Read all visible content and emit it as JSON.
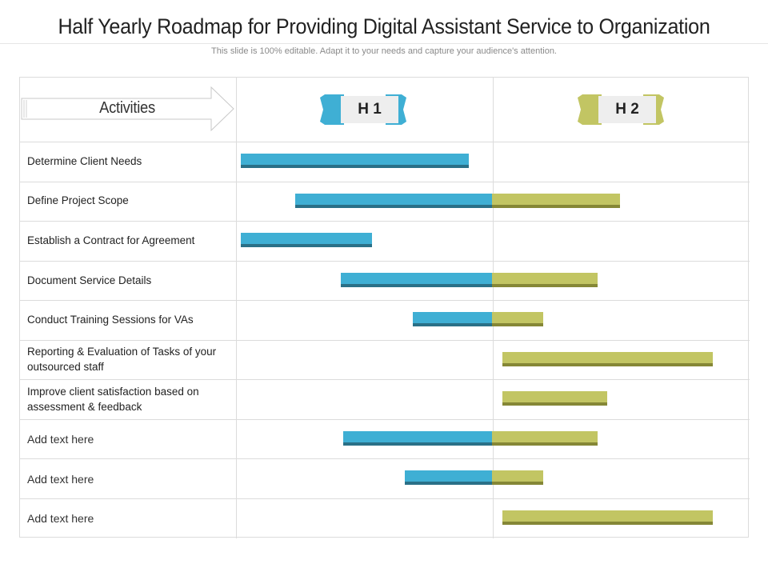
{
  "title": "Half Yearly Roadmap for Providing Digital Assistant Service to Organization",
  "subtitle": "This slide is 100% editable. Adapt it to your needs and capture your audience's attention.",
  "header": {
    "activities_label": "Activities",
    "periods": [
      {
        "label": "H 1",
        "color": "#3fafd4"
      },
      {
        "label": "H 2",
        "color": "#c2c563"
      }
    ]
  },
  "colors": {
    "h1_bar": "#3fafd4",
    "h1_shadow": "#2a7087",
    "h2_bar": "#c2c563",
    "h2_shadow": "#858736"
  },
  "rows": [
    {
      "label": "Determine Client Needs",
      "start": 0.02,
      "end": 0.91
    },
    {
      "label": "Define Project Scope",
      "start": 0.23,
      "end": 1.5
    },
    {
      "label": "Establish a Contract for Agreement",
      "start": 0.02,
      "end": 0.53
    },
    {
      "label": "Document Service Details",
      "start": 0.41,
      "end": 1.41
    },
    {
      "label": "Conduct Training Sessions for VAs",
      "start": 0.69,
      "end": 1.2
    },
    {
      "label": "Reporting & Evaluation of Tasks of your outsourced staff",
      "start": 1.04,
      "end": 1.86
    },
    {
      "label": "Improve  client satisfaction based on assessment & feedback",
      "start": 1.04,
      "end": 1.45
    },
    {
      "label": "Add text here",
      "start": 0.42,
      "end": 1.41
    },
    {
      "label": "Add text here",
      "start": 0.66,
      "end": 1.2
    },
    {
      "label": "Add text here",
      "start": 1.04,
      "end": 1.86
    }
  ]
}
